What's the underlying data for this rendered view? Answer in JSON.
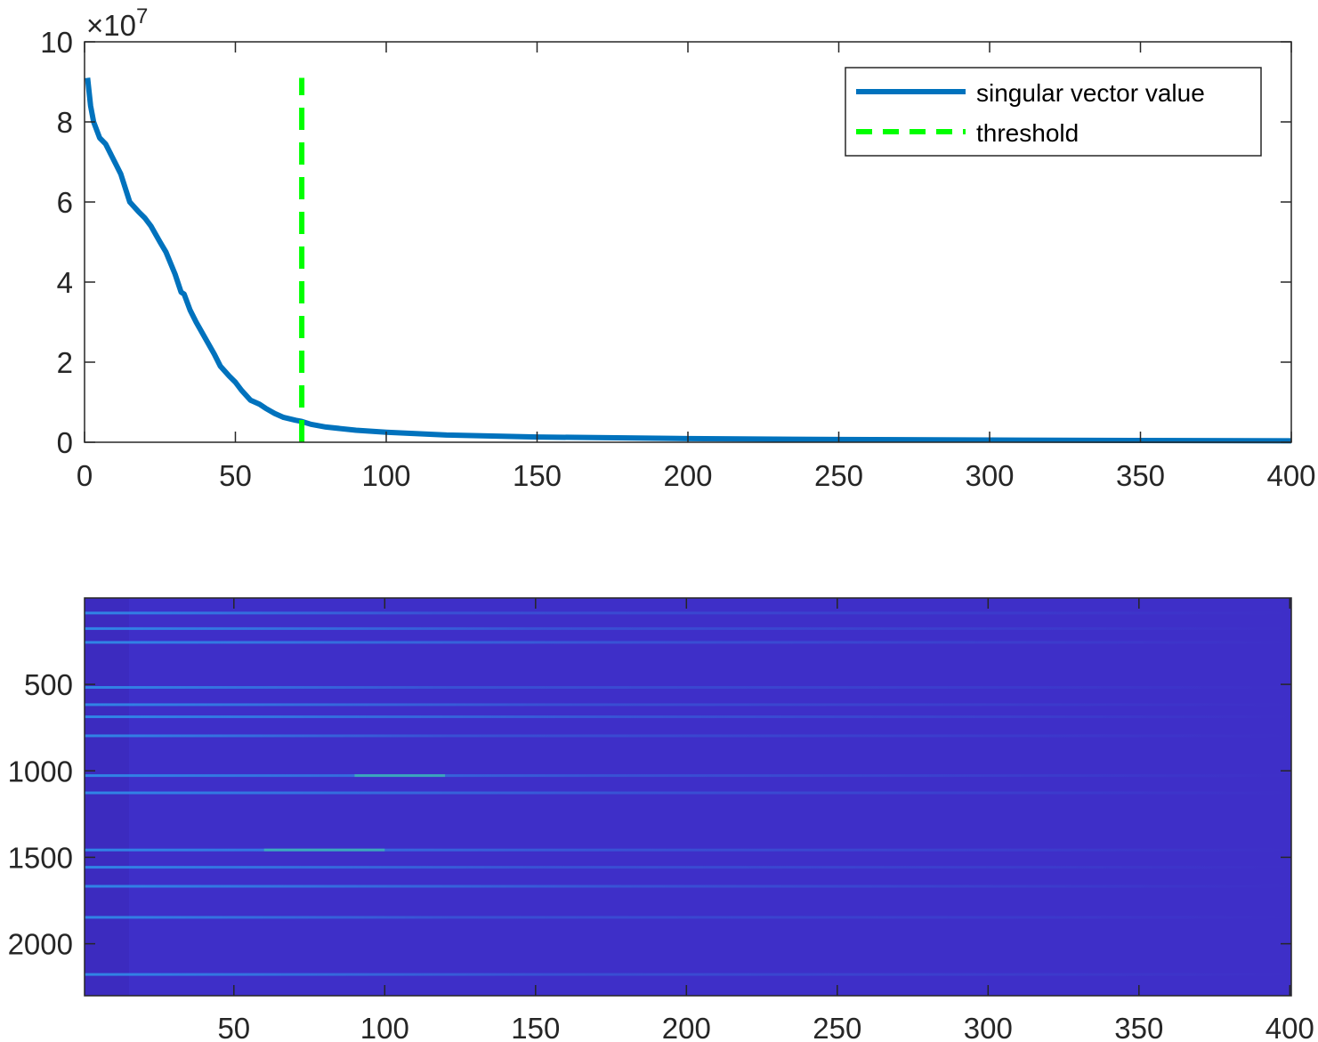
{
  "chart_data": [
    {
      "type": "line",
      "title": "",
      "xlabel": "",
      "ylabel": "",
      "y_exponent_label": "×10",
      "y_exponent": "7",
      "xlim": [
        0,
        400
      ],
      "ylim": [
        0,
        10
      ],
      "xticks": [
        0,
        50,
        100,
        150,
        200,
        250,
        300,
        350,
        400
      ],
      "xtick_labels": [
        "0",
        "50",
        "100",
        "150",
        "200",
        "250",
        "300",
        "350",
        "400"
      ],
      "yticks": [
        0,
        2,
        4,
        6,
        8,
        10
      ],
      "ytick_labels": [
        "0",
        "2",
        "4",
        "6",
        "8",
        "10"
      ],
      "grid": false,
      "legend_position": "top-right",
      "colors": {
        "series": "#0072BD",
        "threshold": "#00FF00"
      },
      "series": [
        {
          "name": "singular vector value",
          "style": "solid",
          "x": [
            1,
            2,
            3,
            5,
            7,
            10,
            12,
            15,
            18,
            20,
            22,
            25,
            27,
            30,
            32,
            33,
            35,
            37,
            40,
            43,
            45,
            48,
            50,
            52,
            55,
            58,
            60,
            63,
            66,
            70,
            72,
            75,
            80,
            90,
            100,
            120,
            150,
            200,
            250,
            300,
            350,
            400
          ],
          "y": [
            9.1,
            8.4,
            8.0,
            7.6,
            7.45,
            7.0,
            6.7,
            6.0,
            5.75,
            5.6,
            5.4,
            5.0,
            4.75,
            4.2,
            3.75,
            3.7,
            3.3,
            3.0,
            2.6,
            2.2,
            1.9,
            1.65,
            1.5,
            1.3,
            1.05,
            0.95,
            0.85,
            0.72,
            0.62,
            0.55,
            0.52,
            0.45,
            0.38,
            0.3,
            0.25,
            0.18,
            0.13,
            0.09,
            0.07,
            0.055,
            0.045,
            0.035
          ]
        },
        {
          "name": "threshold",
          "style": "dashed",
          "x": [
            72,
            72
          ],
          "y": [
            0,
            9.1
          ]
        }
      ]
    },
    {
      "type": "heatmap",
      "title": "",
      "xlabel": "",
      "ylabel": "",
      "xlim": [
        0.5,
        400.5
      ],
      "ylim": [
        0.5,
        2300.5
      ],
      "y_direction": "reverse",
      "xticks": [
        50,
        100,
        150,
        200,
        250,
        300,
        350,
        400
      ],
      "xtick_labels": [
        "50",
        "100",
        "150",
        "200",
        "250",
        "300",
        "350",
        "400"
      ],
      "yticks": [
        500,
        1000,
        1500,
        2000
      ],
      "ytick_labels": [
        "500",
        "1000",
        "1500",
        "2000"
      ],
      "grid": false,
      "colormap": "parula",
      "colors": {
        "background": "#3E2FC8",
        "bright_band": "#2F8FEA",
        "peak": "#3FD0A8"
      },
      "bright_rows": [
        90,
        180,
        260,
        520,
        620,
        690,
        800,
        1030,
        1130,
        1460,
        1560,
        1670,
        1850,
        2180
      ]
    }
  ]
}
